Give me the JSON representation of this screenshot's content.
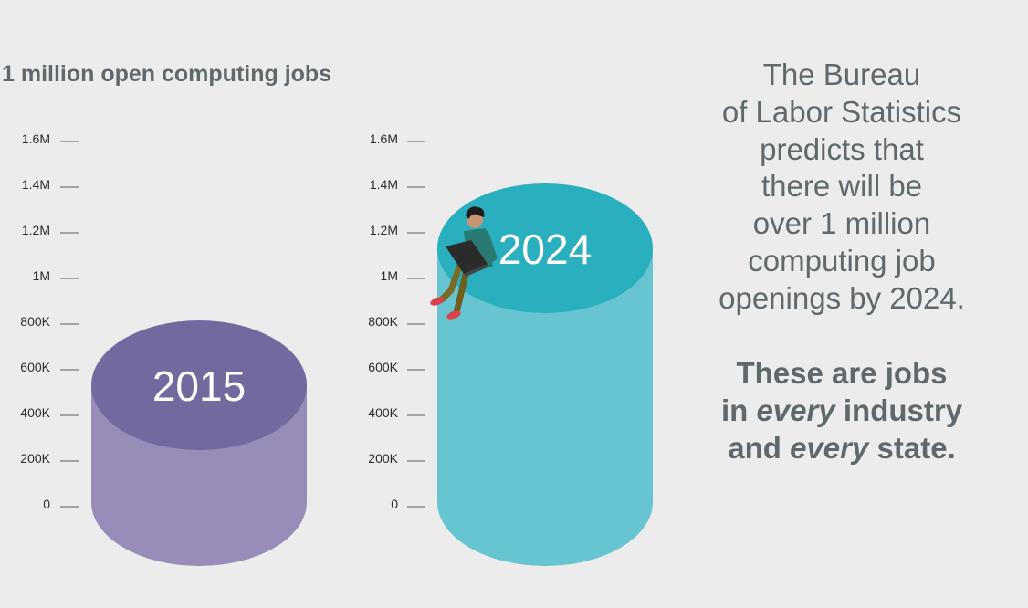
{
  "colors": {
    "background": "#ececec",
    "text": "#5f696d",
    "cylinder_2015_top": "#73699f",
    "cylinder_2015_side": "#978db8",
    "cylinder_2024_top": "#29afbd",
    "cylinder_2024_side": "#67c5d1"
  },
  "chart_data": {
    "type": "bar",
    "title": "1 million open computing jobs",
    "categories": [
      "2015",
      "2024"
    ],
    "values": [
      600000,
      1200000
    ],
    "ylim": [
      0,
      1600000
    ],
    "yticks": [
      0,
      200000,
      400000,
      600000,
      800000,
      1000000,
      1200000,
      1400000,
      1600000
    ],
    "ytick_labels": [
      "0",
      "200K",
      "400K",
      "600K",
      "800K",
      "1M",
      "1.2M",
      "1.4M",
      "1.6M"
    ],
    "bar_style": "3d-cylinder",
    "grid": false,
    "legend": "none"
  },
  "side_text": {
    "paragraph_1": [
      "The Bureau",
      "of Labor Statistics",
      "predicts that",
      "there will be",
      "over 1 million",
      "computing job",
      "openings by 2024."
    ],
    "paragraph_2": {
      "line_1": "These are jobs",
      "line_2_prefix": "in ",
      "line_2_emphasis": "every",
      "line_2_suffix": " industry",
      "line_3_prefix": "and ",
      "line_3_emphasis": "every",
      "line_3_suffix": " state."
    }
  },
  "illustration": {
    "icon": "person-with-laptop-icon"
  }
}
